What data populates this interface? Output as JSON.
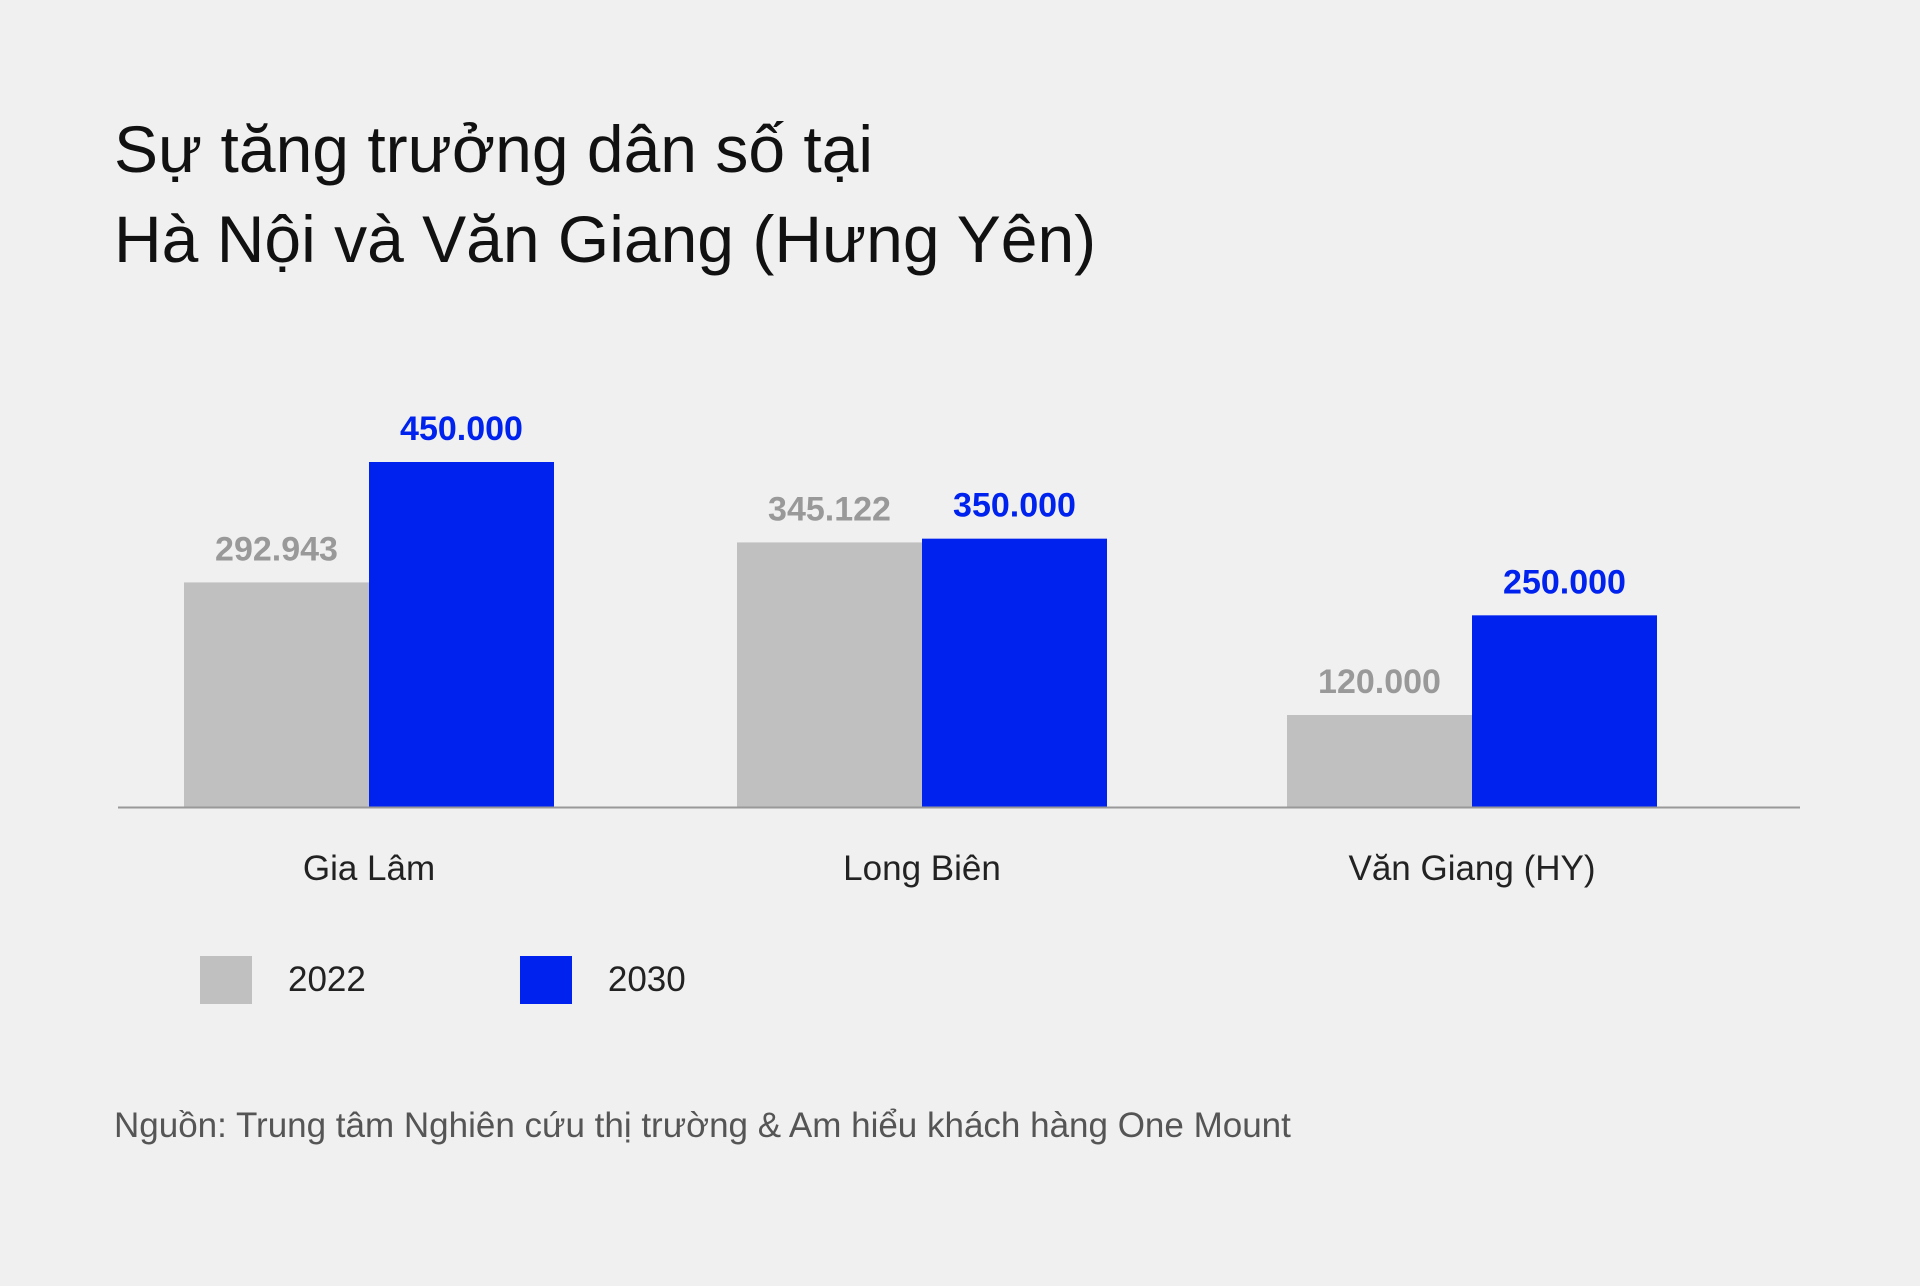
{
  "title": {
    "line1": "Sự tăng trưởng dân số tại",
    "line2": "Hà Nội và Văn Giang (Hưng Yên)"
  },
  "source": "Nguồn: Trung tâm Nghiên cứu thị trường & Am hiểu khách hàng One Mount",
  "colors": {
    "series_2022": "#c0c0c0",
    "series_2030": "#0022ee",
    "label_2022": "#999999",
    "label_2030": "#0022ee",
    "axis": "#999999"
  },
  "chart_data": {
    "type": "bar",
    "title": "Sự tăng trưởng dân số tại Hà Nội và Văn Giang (Hưng Yên)",
    "categories": [
      "Gia Lâm",
      "Long Biên",
      "Văn Giang (HY)"
    ],
    "series": [
      {
        "name": "2022",
        "values": [
          292943,
          345122,
          120000
        ],
        "labels": [
          "292.943",
          "345.122",
          "120.000"
        ]
      },
      {
        "name": "2030",
        "values": [
          450000,
          350000,
          250000
        ],
        "labels": [
          "450.000",
          "350.000",
          "250.000"
        ]
      }
    ],
    "xlabel": "",
    "ylabel": "",
    "ylim": [
      0,
      450000
    ],
    "grid": false,
    "legend": "bottom-left"
  }
}
